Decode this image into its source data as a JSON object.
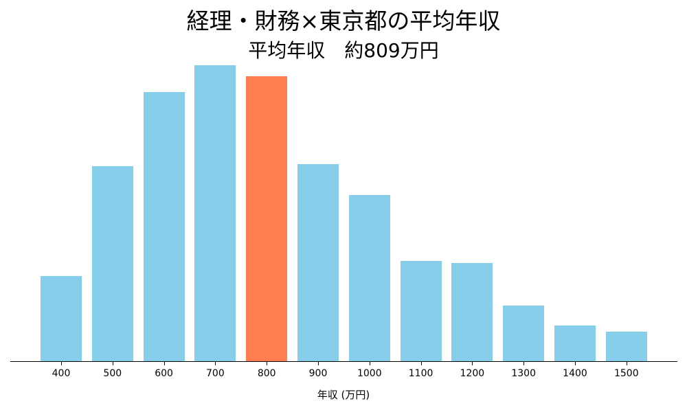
{
  "chart_data": {
    "type": "bar",
    "title": "経理・財務×東京都の平均年収",
    "subtitle": "平均年収　約809万円",
    "xlabel": "年収 (万円)",
    "ylabel": "",
    "categories": [
      "400",
      "500",
      "600",
      "700",
      "800",
      "900",
      "1000",
      "1100",
      "1200",
      "1300",
      "1400",
      "1500"
    ],
    "values": [
      125,
      285,
      393,
      432,
      416,
      288,
      243,
      147,
      144,
      82,
      53,
      44
    ],
    "value_note": "relative bar heights (no y-axis shown)",
    "highlight_category": "800",
    "colors": {
      "default": "#87CEEB",
      "highlight": "#FF7F50"
    },
    "grid": false,
    "legend": null
  }
}
